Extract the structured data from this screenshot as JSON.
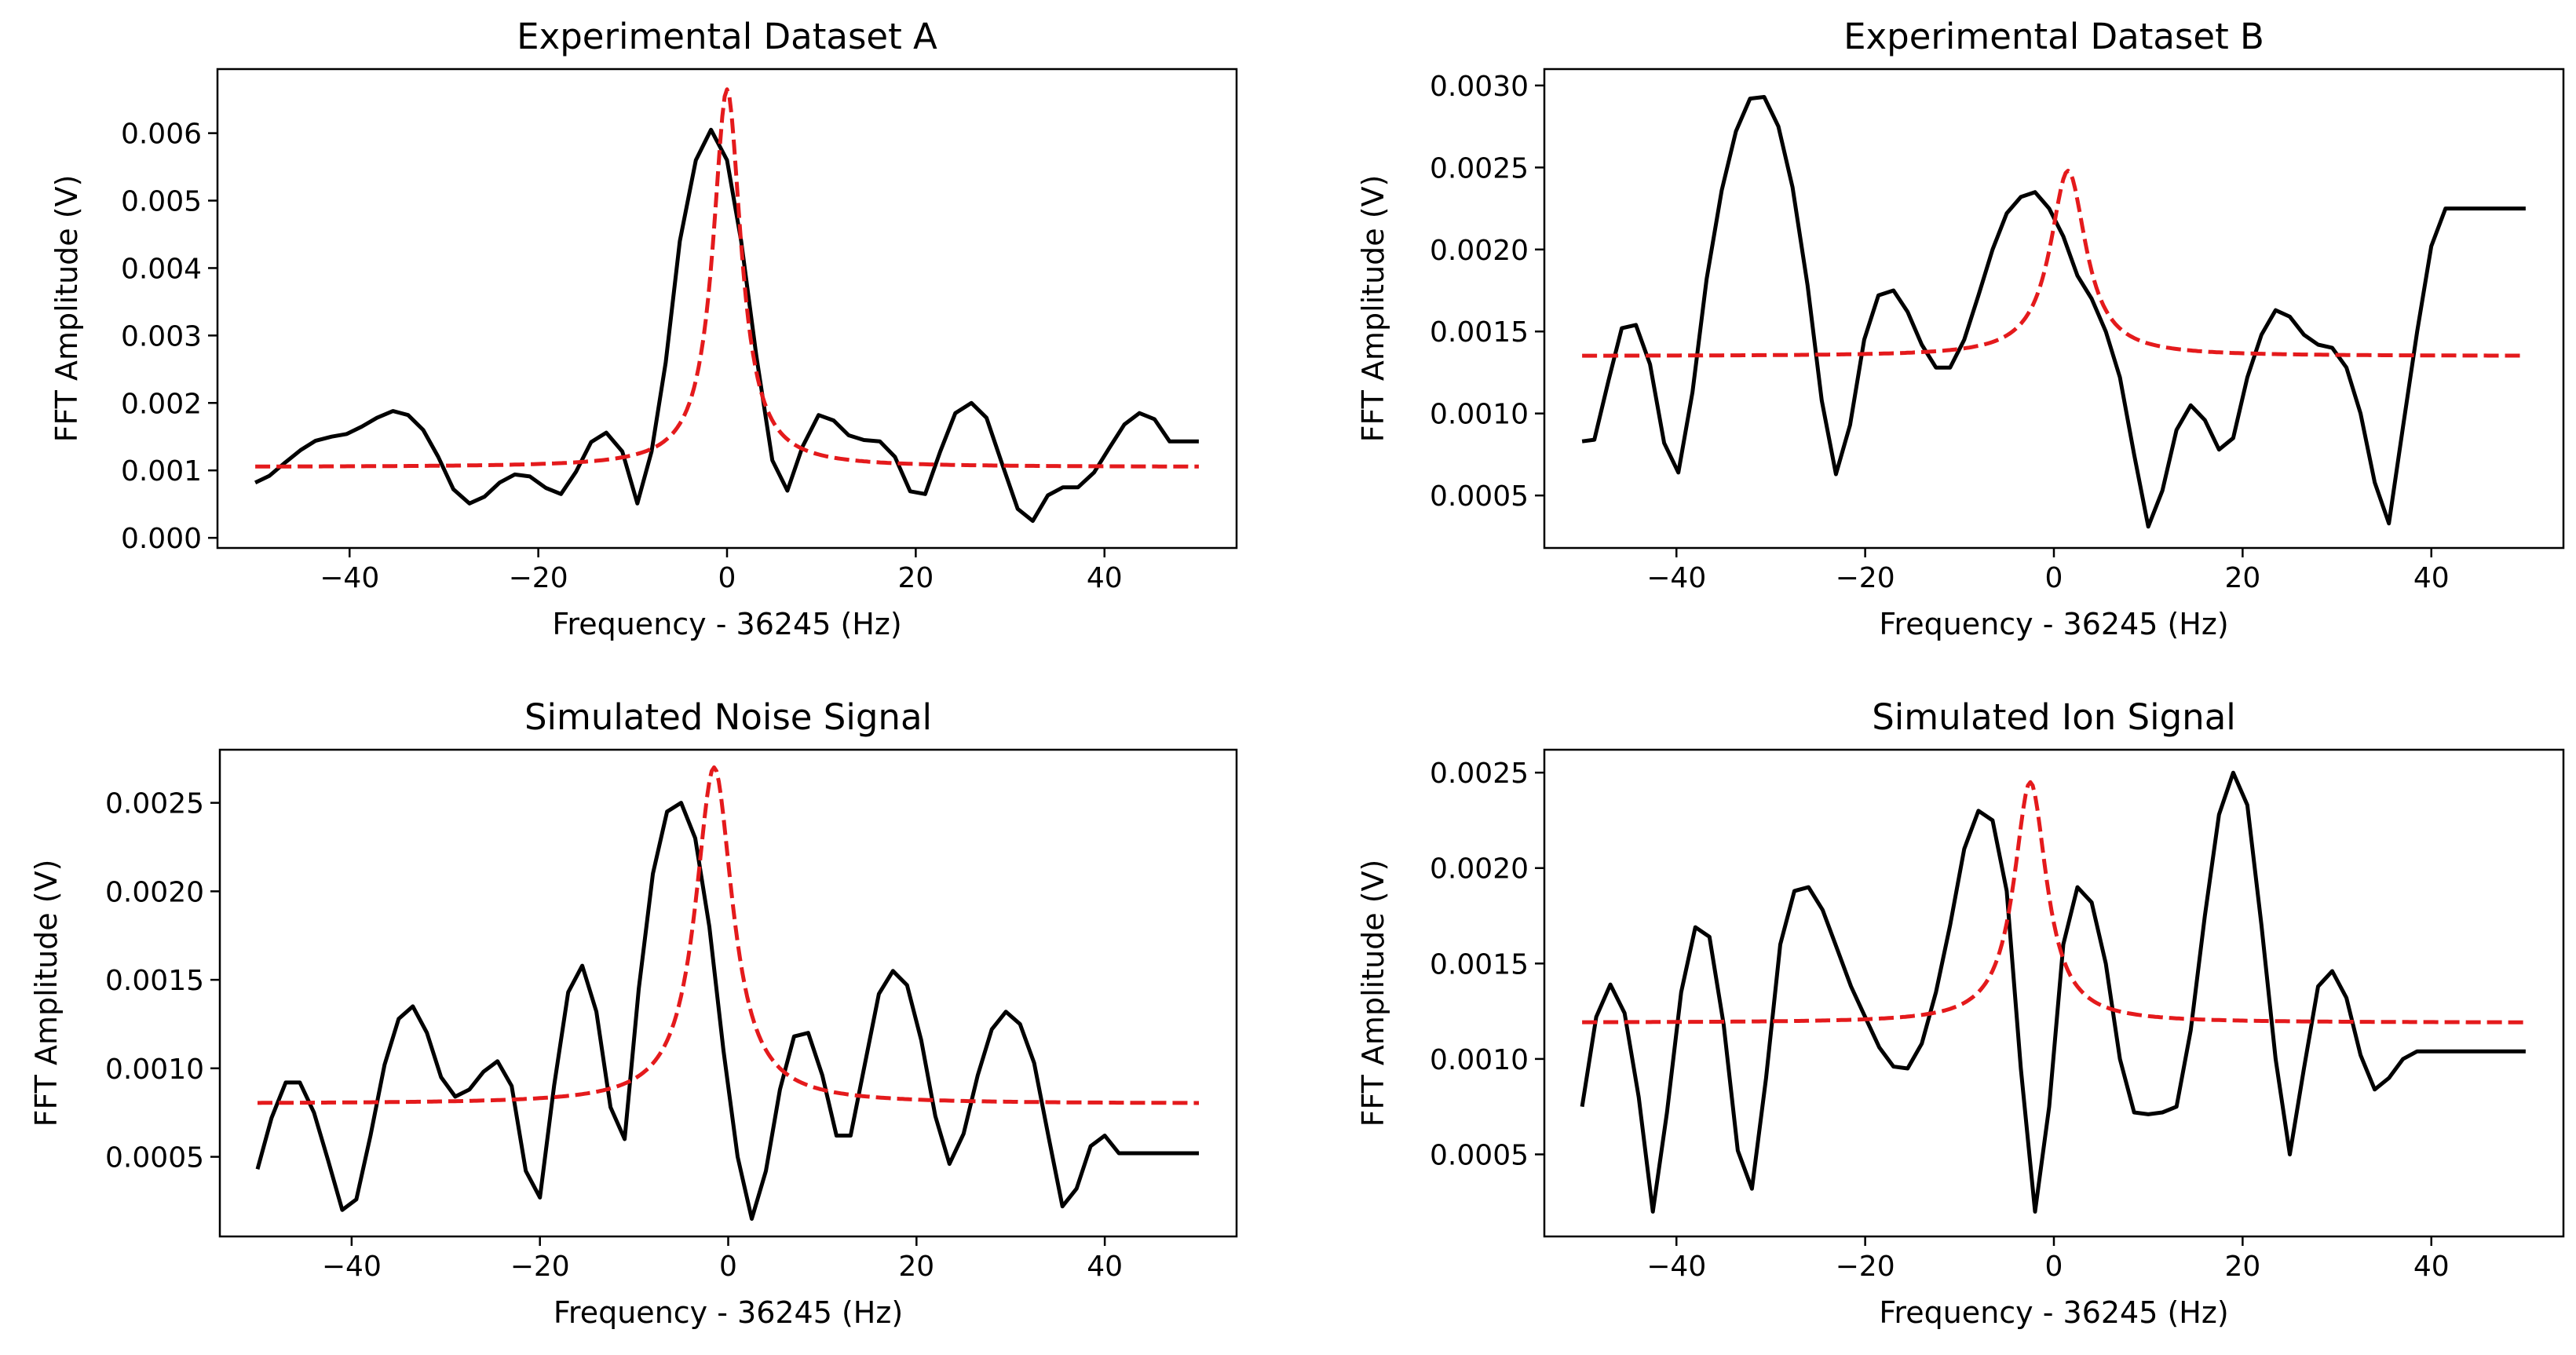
{
  "colors": {
    "data": "#000000",
    "fit": "#e41a1c",
    "axes": "#000000",
    "background": "#ffffff"
  },
  "chart_data": [
    {
      "type": "line",
      "title": "Experimental Dataset A",
      "xlabel": "Frequency - 36245 (Hz)",
      "ylabel": "FFT Amplitude (V)",
      "xlim": [
        -54,
        54
      ],
      "ylim": [
        -0.00015,
        0.00695
      ],
      "xticks": [
        -40,
        -20,
        0,
        20,
        40
      ],
      "xtick_labels": [
        "−40",
        "−20",
        "0",
        "20",
        "40"
      ],
      "yticks": [
        0,
        0.001,
        0.002,
        0.003,
        0.004,
        0.005,
        0.006
      ],
      "ytick_labels": [
        "0.000",
        "0.001",
        "0.002",
        "0.003",
        "0.004",
        "0.005",
        "0.006"
      ],
      "series": [
        {
          "name": "data",
          "style": "solid",
          "x": [
            -50,
            -48.5,
            -46.8,
            -45.2,
            -43.6,
            -41.9,
            -40.3,
            -38.7,
            -37.1,
            -35.4,
            -33.8,
            -32.2,
            -30.6,
            -29,
            -27.3,
            -25.7,
            -24.1,
            -22.5,
            -20.9,
            -19.2,
            -17.6,
            -16,
            -14.4,
            -12.8,
            -11.1,
            -9.5,
            -8,
            -6.5,
            -5,
            -3.3,
            -1.7,
            0,
            1.5,
            3.1,
            4.8,
            6.4,
            8,
            9.7,
            11.3,
            12.9,
            14.5,
            16.2,
            17.8,
            19.4,
            21,
            22.6,
            24.2,
            25.9,
            27.5,
            29.1,
            30.8,
            32.4,
            34,
            35.6,
            37.2,
            38.9,
            40.5,
            42.1,
            43.7,
            45.3,
            46.9,
            48.6,
            50
          ],
          "y": [
            0.00082,
            0.00092,
            0.00112,
            0.0013,
            0.00144,
            0.0015,
            0.00154,
            0.00165,
            0.00178,
            0.00188,
            0.00182,
            0.0016,
            0.0012,
            0.00072,
            0.00051,
            0.00061,
            0.00082,
            0.00094,
            0.00091,
            0.00074,
            0.00065,
            0.00098,
            0.00142,
            0.00156,
            0.00128,
            0.00051,
            0.00128,
            0.0026,
            0.0044,
            0.0056,
            0.00605,
            0.0056,
            0.0044,
            0.0027,
            0.00115,
            0.0007,
            0.00135,
            0.00182,
            0.00174,
            0.00152,
            0.00145,
            0.00143,
            0.0012,
            0.00069,
            0.00065,
            0.00128,
            0.00185,
            0.002,
            0.00178,
            0.00112,
            0.00043,
            0.00025,
            0.00063,
            0.00075,
            0.00075,
            0.00097,
            0.00133,
            0.00168,
            0.00185,
            0.00176,
            0.00143,
            0.00143,
            0.00143
          ]
        },
        {
          "name": "fit",
          "style": "dashed",
          "fit": {
            "center": 0,
            "peak": 0.00665,
            "baseline": 0.00105,
            "gamma": 1.8
          }
        }
      ]
    },
    {
      "type": "line",
      "title": "Experimental Dataset B",
      "xlabel": "Frequency - 36245 (Hz)",
      "ylabel": "FFT Amplitude (V)",
      "xlim": [
        -54,
        54
      ],
      "ylim": [
        0.00018,
        0.0031
      ],
      "xticks": [
        -40,
        -20,
        0,
        20,
        40
      ],
      "xtick_labels": [
        "−40",
        "−20",
        "0",
        "20",
        "40"
      ],
      "yticks": [
        0.0005,
        0.001,
        0.0015,
        0.002,
        0.0025,
        0.003
      ],
      "ytick_labels": [
        "0.0005",
        "0.0010",
        "0.0015",
        "0.0020",
        "0.0025",
        "0.0030"
      ],
      "series": [
        {
          "name": "data",
          "style": "solid",
          "x": [
            -50,
            -48.7,
            -47.2,
            -45.8,
            -44.3,
            -42.8,
            -41.3,
            -39.8,
            -38.3,
            -36.8,
            -35.2,
            -33.7,
            -32.2,
            -30.7,
            -29.2,
            -27.7,
            -26.1,
            -24.6,
            -23.1,
            -21.6,
            -20.1,
            -18.6,
            -17,
            -15.5,
            -14,
            -12.5,
            -11,
            -9.5,
            -8,
            -6.5,
            -5,
            -3.5,
            -2,
            -0.5,
            1,
            2.5,
            4,
            5.5,
            7,
            8.5,
            10,
            11.5,
            13,
            14.5,
            16,
            17.5,
            19,
            20.5,
            22,
            23.5,
            25,
            26.5,
            28,
            29.5,
            31,
            32.5,
            34,
            35.5,
            37,
            38.5,
            40,
            41.5,
            43,
            44.5,
            46,
            47.5,
            49,
            50
          ],
          "y": [
            0.00083,
            0.00084,
            0.0012,
            0.00152,
            0.00154,
            0.0013,
            0.00082,
            0.00064,
            0.00113,
            0.00182,
            0.00236,
            0.00272,
            0.00292,
            0.00293,
            0.00275,
            0.00238,
            0.00178,
            0.00108,
            0.00063,
            0.00093,
            0.00145,
            0.00172,
            0.00175,
            0.00162,
            0.00142,
            0.00128,
            0.00128,
            0.00145,
            0.00172,
            0.002,
            0.00222,
            0.00232,
            0.00235,
            0.00225,
            0.00208,
            0.00184,
            0.0017,
            0.0015,
            0.00122,
            0.00075,
            0.00031,
            0.00053,
            0.0009,
            0.00105,
            0.00096,
            0.00078,
            0.00085,
            0.00122,
            0.00148,
            0.00163,
            0.00159,
            0.00148,
            0.00142,
            0.0014,
            0.00128,
            0.001,
            0.00058,
            0.00033,
            0.00092,
            0.0015,
            0.00202,
            0.00225,
            0.00225,
            0.00225,
            0.00225,
            0.00225,
            0.00225,
            0.00225
          ]
        },
        {
          "name": "fit",
          "style": "dashed",
          "fit": {
            "center": 1.5,
            "peak": 0.00248,
            "baseline": 0.00135,
            "gamma": 2.3
          }
        }
      ]
    },
    {
      "type": "line",
      "title": "Simulated Noise Signal",
      "xlabel": "Frequency - 36245 (Hz)",
      "ylabel": "FFT Amplitude (V)",
      "xlim": [
        -54,
        54
      ],
      "ylim": [
        5e-05,
        0.0028
      ],
      "xticks": [
        -40,
        -20,
        0,
        20,
        40
      ],
      "xtick_labels": [
        "−40",
        "−20",
        "0",
        "20",
        "40"
      ],
      "yticks": [
        0.0005,
        0.001,
        0.0015,
        0.002,
        0.0025
      ],
      "ytick_labels": [
        "0.0005",
        "0.0010",
        "0.0015",
        "0.0020",
        "0.0025"
      ],
      "series": [
        {
          "name": "data",
          "style": "solid",
          "x": [
            -50,
            -48.5,
            -47,
            -45.5,
            -44,
            -42.5,
            -41,
            -39.5,
            -38,
            -36.5,
            -35,
            -33.5,
            -32,
            -30.5,
            -29,
            -27.5,
            -26,
            -24.5,
            -23,
            -21.5,
            -20,
            -18.5,
            -17,
            -15.5,
            -14,
            -12.5,
            -11,
            -9.5,
            -8,
            -6.5,
            -5,
            -3.5,
            -2,
            -0.5,
            1,
            2.5,
            4,
            5.5,
            7,
            8.5,
            10,
            11.5,
            13,
            14.5,
            16,
            17.5,
            19,
            20.5,
            22,
            23.5,
            25,
            26.5,
            28,
            29.5,
            31,
            32.5,
            34,
            35.5,
            37,
            38.5,
            40,
            41.5,
            43,
            44.5,
            46,
            47.5,
            49,
            50
          ],
          "y": [
            0.00043,
            0.00072,
            0.00092,
            0.00092,
            0.00075,
            0.00048,
            0.0002,
            0.00026,
            0.00062,
            0.00102,
            0.00128,
            0.00135,
            0.0012,
            0.00095,
            0.00084,
            0.00088,
            0.00098,
            0.00104,
            0.0009,
            0.00042,
            0.00027,
            0.0009,
            0.00143,
            0.00158,
            0.00132,
            0.00078,
            0.0006,
            0.00145,
            0.0021,
            0.00245,
            0.0025,
            0.0023,
            0.0018,
            0.0011,
            0.0005,
            0.00015,
            0.00042,
            0.00088,
            0.00118,
            0.0012,
            0.00096,
            0.00062,
            0.00062,
            0.00102,
            0.00142,
            0.00155,
            0.00147,
            0.00116,
            0.00073,
            0.00046,
            0.00063,
            0.00096,
            0.00122,
            0.00132,
            0.00125,
            0.00103,
            0.00062,
            0.00022,
            0.00032,
            0.00056,
            0.00062,
            0.00052,
            0.00052,
            0.00052,
            0.00052,
            0.00052,
            0.00052,
            0.00052
          ]
        },
        {
          "name": "fit",
          "style": "dashed",
          "fit": {
            "center": -1.5,
            "peak": 0.0027,
            "baseline": 0.0008,
            "gamma": 2.4
          }
        }
      ]
    },
    {
      "type": "line",
      "title": "Simulated Ion Signal",
      "xlabel": "Frequency - 36245 (Hz)",
      "ylabel": "FFT Amplitude (V)",
      "xlim": [
        -54,
        54
      ],
      "ylim": [
        7e-05,
        0.00262
      ],
      "xticks": [
        -40,
        -20,
        0,
        20,
        40
      ],
      "xtick_labels": [
        "−40",
        "−20",
        "0",
        "20",
        "40"
      ],
      "yticks": [
        0.0005,
        0.001,
        0.0015,
        0.002,
        0.0025
      ],
      "ytick_labels": [
        "0.0005",
        "0.0010",
        "0.0015",
        "0.0020",
        "0.0025"
      ],
      "series": [
        {
          "name": "data",
          "style": "solid",
          "x": [
            -50,
            -48.5,
            -47,
            -45.5,
            -44,
            -42.5,
            -41,
            -39.5,
            -38,
            -36.5,
            -35,
            -33.5,
            -32,
            -30.5,
            -29,
            -27.5,
            -26,
            -24.5,
            -23,
            -21.5,
            -20,
            -18.5,
            -17,
            -15.5,
            -14,
            -12.5,
            -11,
            -9.5,
            -8,
            -6.5,
            -5,
            -3.5,
            -2,
            -0.5,
            1,
            2.5,
            4,
            5.5,
            7,
            8.5,
            10,
            11.5,
            13,
            14.5,
            16,
            17.5,
            19,
            20.5,
            22,
            23.5,
            25,
            26.5,
            28,
            29.5,
            31,
            32.5,
            34,
            35.5,
            37,
            38.5,
            40,
            41.5,
            43,
            44.5,
            46,
            47.5,
            49,
            50
          ],
          "y": [
            0.00075,
            0.00122,
            0.00139,
            0.00124,
            0.0008,
            0.0002,
            0.00072,
            0.00135,
            0.00169,
            0.00164,
            0.00118,
            0.00052,
            0.00032,
            0.0009,
            0.0016,
            0.00188,
            0.0019,
            0.00178,
            0.00158,
            0.00138,
            0.00122,
            0.00106,
            0.00096,
            0.00095,
            0.00108,
            0.00135,
            0.0017,
            0.0021,
            0.0023,
            0.00225,
            0.00188,
            0.00095,
            0.0002,
            0.00075,
            0.0016,
            0.0019,
            0.00182,
            0.0015,
            0.001,
            0.00072,
            0.00071,
            0.00072,
            0.00075,
            0.00115,
            0.00175,
            0.00228,
            0.0025,
            0.00233,
            0.0017,
            0.001,
            0.0005,
            0.00095,
            0.00138,
            0.00146,
            0.00132,
            0.00102,
            0.00084,
            0.0009,
            0.001,
            0.00104,
            0.00104,
            0.00104,
            0.00104,
            0.00104,
            0.00104,
            0.00104,
            0.00104,
            0.00104
          ]
        },
        {
          "name": "fit",
          "style": "dashed",
          "fit": {
            "center": -2.5,
            "peak": 0.00245,
            "baseline": 0.00119,
            "gamma": 2.1
          }
        }
      ]
    }
  ]
}
